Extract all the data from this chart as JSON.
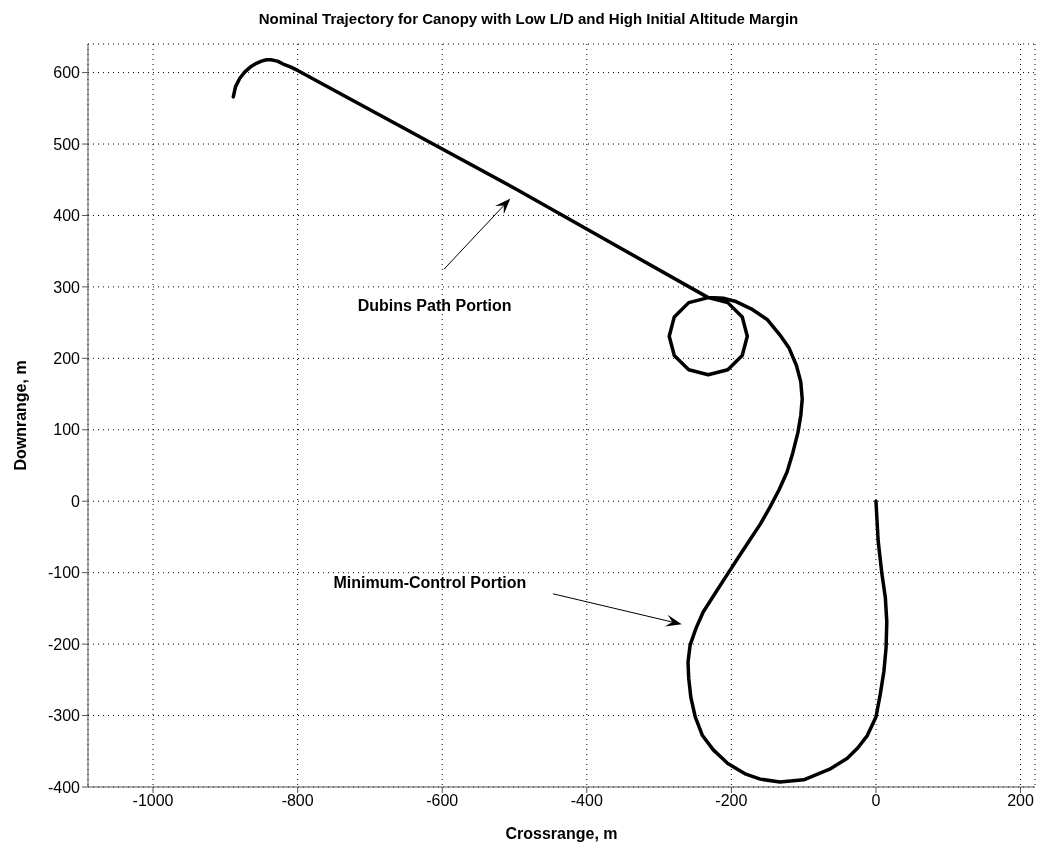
{
  "chart_data": {
    "type": "line",
    "title": "Nominal Trajectory for Canopy with Low L/D and High Initial Altitude Margin",
    "xlabel": "Crossrange, m",
    "ylabel": "Downrange, m",
    "xlim": [
      -1090,
      220
    ],
    "xticks": [
      -1000,
      -800,
      -600,
      -400,
      -200,
      0,
      200
    ],
    "ylim": [
      -400,
      640
    ],
    "yticks": [
      -400,
      -300,
      -200,
      -100,
      0,
      100,
      200,
      300,
      400,
      500,
      600
    ],
    "grid": true,
    "marker": "none",
    "line_style": "solid",
    "series": [
      {
        "color": "#000000",
        "x": [
          -889,
          -886,
          -880,
          -873,
          -865,
          -857,
          -850,
          -843,
          -837,
          -828,
          -820,
          -810,
          -800,
          -500,
          -232,
          -205,
          -185,
          -178,
          -185,
          -205,
          -232,
          -259,
          -279,
          -286,
          -279,
          -259,
          -232,
          -210,
          -195,
          -172,
          -150,
          -133,
          -120,
          -110,
          -104,
          -102,
          -104,
          -108,
          -115,
          -123,
          -134,
          -147,
          -160,
          -175,
          -190,
          -204,
          -222,
          -239,
          -249,
          -257,
          -260,
          -259,
          -256,
          -250,
          -240,
          -225,
          -205,
          -180,
          -160,
          -133,
          -100,
          -64,
          -40,
          -25,
          -12,
          0,
          6,
          11,
          14,
          15,
          13,
          8,
          3,
          0
        ],
        "values": [
          566,
          580,
          592,
          601,
          608,
          613,
          616,
          618,
          618,
          616,
          612,
          608,
          603,
          438,
          285,
          278,
          258,
          231,
          204,
          184,
          177,
          184,
          204,
          231,
          258,
          278,
          285,
          284,
          280,
          269,
          254,
          233,
          214,
          190,
          167,
          143,
          120,
          96,
          68,
          41,
          16,
          -9,
          -32,
          -55,
          -78,
          -100,
          -128,
          -155,
          -178,
          -201,
          -225,
          -248,
          -275,
          -302,
          -328,
          -348,
          -367,
          -382,
          -389,
          -393,
          -390,
          -375,
          -360,
          -345,
          -328,
          -302,
          -270,
          -238,
          -205,
          -169,
          -135,
          -100,
          -55,
          0
        ]
      }
    ],
    "annotations": [
      "Dubins Path Portion",
      "Minimum-Control Portion"
    ]
  }
}
